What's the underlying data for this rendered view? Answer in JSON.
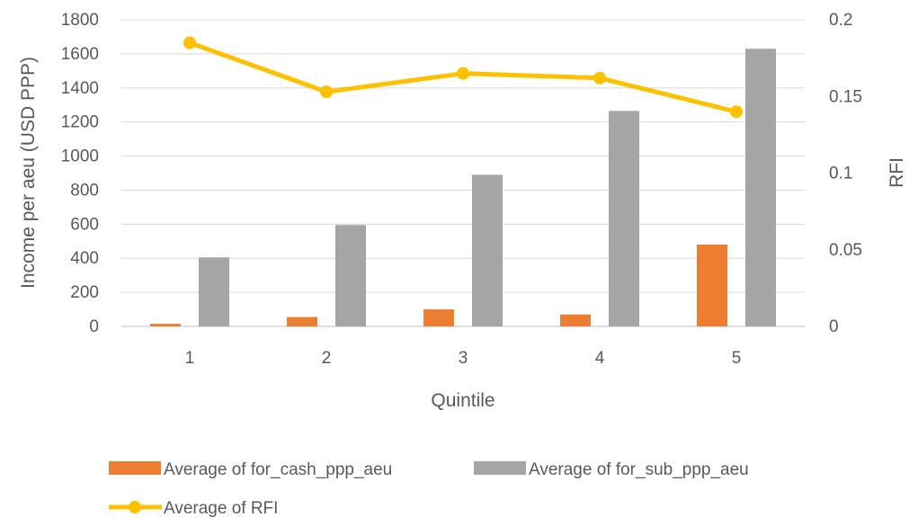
{
  "chart_data": {
    "type": "bar",
    "categories": [
      "1",
      "2",
      "3",
      "4",
      "5"
    ],
    "xlabel": "Quintile",
    "ylabel": "Income per aeu (USD PPP)",
    "y2label": "RFI",
    "ylim": [
      0,
      1800
    ],
    "y2lim": [
      0,
      0.2
    ],
    "yticks": [
      "0",
      "200",
      "400",
      "600",
      "800",
      "1000",
      "1200",
      "1400",
      "1600",
      "1800"
    ],
    "y2ticks": [
      "0",
      "0.05",
      "0.1",
      "0.15",
      "0.2"
    ],
    "grid": true,
    "legend_position": "bottom",
    "series": [
      {
        "name": "Average of for_cash_ppp_aeu",
        "type": "bar",
        "axis": "left",
        "color": "#ED7D31",
        "values": [
          15,
          55,
          100,
          70,
          480
        ]
      },
      {
        "name": "Average of for_sub_ppp_aeu",
        "type": "bar",
        "axis": "left",
        "color": "#A5A5A5",
        "values": [
          405,
          595,
          890,
          1265,
          1630
        ]
      },
      {
        "name": "Average of RFI",
        "type": "line",
        "axis": "right",
        "color": "#FFC000",
        "values": [
          0.185,
          0.153,
          0.165,
          0.162,
          0.14
        ]
      }
    ]
  }
}
